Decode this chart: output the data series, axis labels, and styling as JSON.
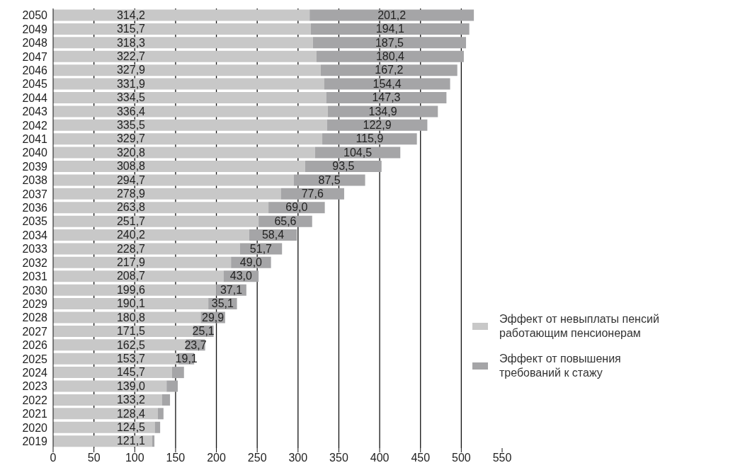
{
  "chart_data": {
    "type": "bar",
    "orientation": "horizontal",
    "stacked": true,
    "categories": [
      "2050",
      "2049",
      "2048",
      "2047",
      "2046",
      "2045",
      "2044",
      "2043",
      "2042",
      "2041",
      "2040",
      "2039",
      "2038",
      "2037",
      "2036",
      "2035",
      "2034",
      "2033",
      "2032",
      "2031",
      "2030",
      "2029",
      "2028",
      "2027",
      "2026",
      "2025",
      "2024",
      "2023",
      "2022",
      "2021",
      "2020",
      "2019"
    ],
    "series": [
      {
        "name": "Эффект от невыплаты пенсий работающим пенсионерам",
        "color": "#c8c8c8",
        "values": [
          314.2,
          315.7,
          318.3,
          322.7,
          327.9,
          331.9,
          334.5,
          336.4,
          335.5,
          329.7,
          320.8,
          308.8,
          294.7,
          278.9,
          263.8,
          251.7,
          240.2,
          228.7,
          217.9,
          208.7,
          199.6,
          190.1,
          180.8,
          171.5,
          162.5,
          153.7,
          145.7,
          139.0,
          133.2,
          128.4,
          124.5,
          121.1
        ],
        "value_labels": [
          "314,2",
          "315,7",
          "318,3",
          "322,7",
          "327,9",
          "331,9",
          "334,5",
          "336,4",
          "335,5",
          "329,7",
          "320,8",
          "308,8",
          "294,7",
          "278,9",
          "263,8",
          "251,7",
          "240,2",
          "228,7",
          "217,9",
          "208,7",
          "199,6",
          "190,1",
          "180,8",
          "171,5",
          "162,5",
          "153,7",
          "145,7",
          "139,0",
          "133,2",
          "128,4",
          "124,5",
          "121,1"
        ]
      },
      {
        "name": "Эффект от повышения требований к стажу",
        "color": "#a5a5a7",
        "values": [
          201.2,
          194.1,
          187.5,
          180.4,
          167.2,
          154.4,
          147.3,
          134.9,
          122.9,
          115.9,
          104.5,
          93.5,
          87.5,
          77.6,
          69.0,
          65.6,
          58.4,
          51.7,
          49.0,
          43.0,
          37.1,
          35.1,
          29.9,
          25.1,
          23.7,
          19.1,
          14.6,
          13.7,
          10.0,
          6.8,
          6.6,
          3.0
        ],
        "value_labels": [
          "201,2",
          "194,1",
          "187,5",
          "180,4",
          "167,2",
          "154,4",
          "147,3",
          "134,9",
          "122,9",
          "115,9",
          "104,5",
          "93,5",
          "87,5",
          "77,6",
          "69,0",
          "65,6",
          "58,4",
          "51,7",
          "49,0",
          "43,0",
          "37,1",
          "35,1",
          "29,9",
          "25,1",
          "23,7",
          "19,1",
          null,
          null,
          null,
          null,
          null,
          null
        ]
      }
    ],
    "xlim": [
      0,
      550
    ],
    "xticks": [
      0,
      50,
      100,
      150,
      200,
      250,
      300,
      350,
      400,
      450,
      500,
      550
    ],
    "grid": "x",
    "legend": "bottom right"
  }
}
